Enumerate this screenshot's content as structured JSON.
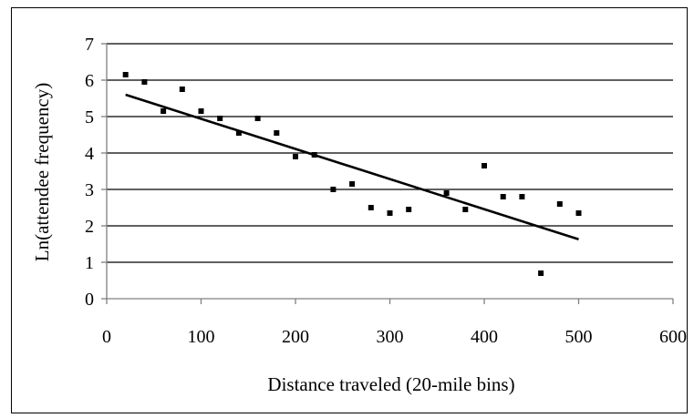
{
  "chart_data": {
    "type": "scatter",
    "title": "",
    "xlabel": "Distance traveled (20-mile bins)",
    "ylabel": "Ln(attendee frequency)",
    "xlim": [
      0,
      600
    ],
    "ylim": [
      0,
      7
    ],
    "x_ticks": [
      0,
      100,
      200,
      300,
      400,
      500,
      600
    ],
    "y_ticks": [
      0,
      1,
      2,
      3,
      4,
      5,
      6,
      7
    ],
    "grid": "horizontal",
    "points": [
      {
        "x": 20,
        "y": 6.15
      },
      {
        "x": 40,
        "y": 5.95
      },
      {
        "x": 60,
        "y": 5.15
      },
      {
        "x": 80,
        "y": 5.75
      },
      {
        "x": 100,
        "y": 5.15
      },
      {
        "x": 120,
        "y": 4.95
      },
      {
        "x": 140,
        "y": 4.55
      },
      {
        "x": 160,
        "y": 4.95
      },
      {
        "x": 180,
        "y": 4.55
      },
      {
        "x": 200,
        "y": 3.9
      },
      {
        "x": 220,
        "y": 3.95
      },
      {
        "x": 240,
        "y": 3.0
      },
      {
        "x": 260,
        "y": 3.15
      },
      {
        "x": 280,
        "y": 2.5
      },
      {
        "x": 300,
        "y": 2.35
      },
      {
        "x": 320,
        "y": 2.45
      },
      {
        "x": 360,
        "y": 2.9
      },
      {
        "x": 380,
        "y": 2.45
      },
      {
        "x": 400,
        "y": 3.65
      },
      {
        "x": 420,
        "y": 2.8
      },
      {
        "x": 440,
        "y": 2.8
      },
      {
        "x": 460,
        "y": 0.7
      },
      {
        "x": 480,
        "y": 2.6
      },
      {
        "x": 500,
        "y": 2.35
      }
    ],
    "trendline": {
      "x": [
        20,
        500
      ],
      "y": [
        5.6,
        1.63
      ]
    },
    "colors": {
      "points": "#000000",
      "trendline": "#000000",
      "grid": "#000000",
      "axis": "#808080"
    }
  }
}
